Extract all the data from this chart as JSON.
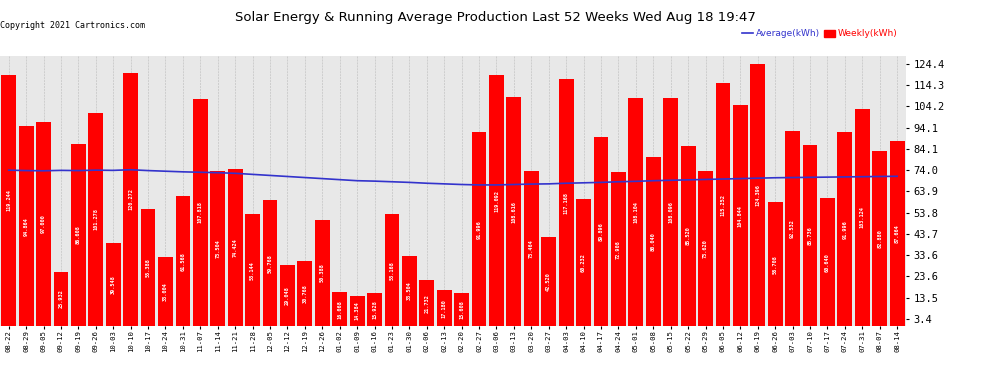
{
  "title": "Solar Energy & Running Average Production Last 52 Weeks Wed Aug 18 19:47",
  "copyright": "Copyright 2021 Cartronics.com",
  "legend_avg": "Average(kWh)",
  "legend_weekly": "Weekly(kWh)",
  "bar_color": "#ff0000",
  "avg_line_color": "#3333cc",
  "background_color": "#ffffff",
  "plot_bg_color": "#e8e8e8",
  "grid_color": "#bbbbbb",
  "ylabel_right_values": [
    124.4,
    114.3,
    104.2,
    94.1,
    84.1,
    74.0,
    63.9,
    53.8,
    43.7,
    33.6,
    23.6,
    13.5,
    3.4
  ],
  "dates": [
    "08-22",
    "08-29",
    "09-05",
    "09-12",
    "09-19",
    "09-26",
    "10-03",
    "10-10",
    "10-17",
    "10-24",
    "10-31",
    "11-07",
    "11-14",
    "11-21",
    "11-28",
    "12-05",
    "12-12",
    "12-19",
    "12-26",
    "01-02",
    "01-09",
    "01-16",
    "01-23",
    "01-30",
    "02-06",
    "02-13",
    "02-20",
    "02-27",
    "03-06",
    "03-13",
    "03-20",
    "03-27",
    "04-03",
    "04-10",
    "04-17",
    "04-24",
    "05-01",
    "05-08",
    "05-15",
    "05-22",
    "05-29",
    "06-05",
    "06-12",
    "06-19",
    "06-26",
    "07-03",
    "07-10",
    "07-17",
    "07-24",
    "07-31",
    "08-07",
    "08-14"
  ],
  "values": [
    119.244,
    94.864,
    97.0,
    25.932,
    86.608,
    101.278,
    39.548,
    120.272,
    55.388,
    33.004,
    61.568,
    107.818,
    73.504,
    74.424,
    53.144,
    59.768,
    29.048,
    30.768,
    50.388,
    16.068,
    14.384,
    15.928,
    53.168,
    33.504,
    21.732,
    17.18,
    15.608,
    91.996,
    119.092,
    108.616,
    73.464,
    42.52,
    117.168,
    60.232,
    89.896,
    72.908,
    108.104,
    80.04,
    108.096,
    85.52,
    73.62,
    115.252,
    104.844,
    124.396,
    58.708,
    92.532,
    85.736,
    60.64,
    91.996,
    103.124,
    82.88,
    87.664
  ],
  "avg_values": [
    74.0,
    73.8,
    73.7,
    73.9,
    73.8,
    74.0,
    73.9,
    74.2,
    73.8,
    73.5,
    73.2,
    73.0,
    72.8,
    72.5,
    72.0,
    71.5,
    71.0,
    70.5,
    70.0,
    69.5,
    69.0,
    68.8,
    68.5,
    68.2,
    67.8,
    67.5,
    67.2,
    67.0,
    67.0,
    67.2,
    67.4,
    67.5,
    67.8,
    68.0,
    68.2,
    68.5,
    68.7,
    69.0,
    69.2,
    69.4,
    69.6,
    69.8,
    70.0,
    70.2,
    70.4,
    70.5,
    70.6,
    70.7,
    70.8,
    70.9,
    71.0,
    71.1
  ],
  "ylim": [
    0,
    128
  ],
  "figsize": [
    9.9,
    3.75
  ],
  "dpi": 100
}
